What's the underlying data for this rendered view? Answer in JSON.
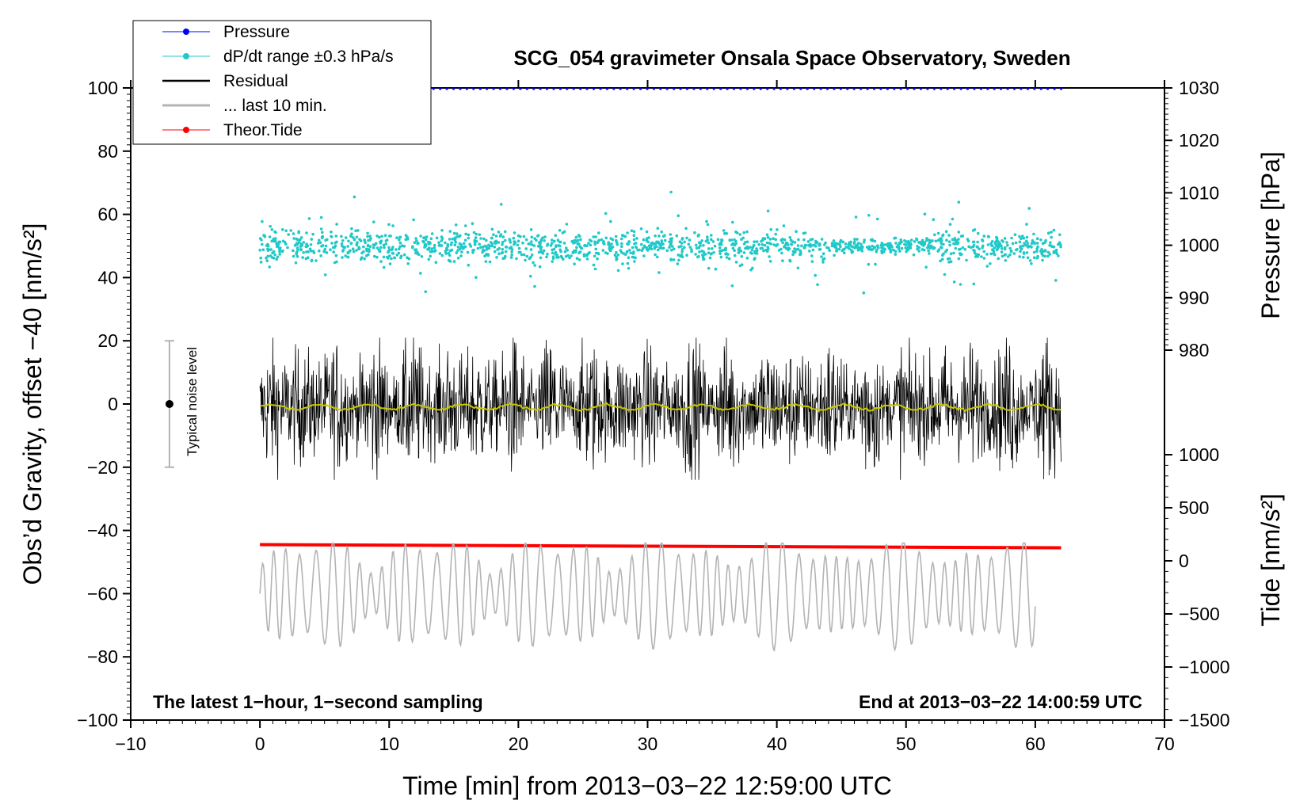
{
  "chart_data": {
    "type": "line",
    "title": "SCG_054 gravimeter Onsala Space Observatory, Sweden",
    "xlabel": "Time [min] from 2013−03−22 12:59:00 UTC",
    "ylabel_left": "Obs’d Gravity, offset −40 [nm/s²]",
    "ylabel_right_pressure": "Pressure [hPa]",
    "ylabel_right_tide": "Tide [nm/s²]",
    "xlim": [
      -10,
      70
    ],
    "ylim": [
      -100,
      100
    ],
    "x_ticks": [
      "−10",
      "0",
      "10",
      "20",
      "30",
      "40",
      "50",
      "60",
      "70"
    ],
    "y_ticks_left": [
      "100",
      "80",
      "60",
      "40",
      "20",
      "0",
      "−20",
      "−40",
      "−60",
      "−80",
      "−100"
    ],
    "pressure_ticks": [
      "1030",
      "1020",
      "1010",
      "1000",
      "990",
      "980"
    ],
    "pressure_range": [
      980,
      1030
    ],
    "tide_ticks": [
      "1000",
      "500",
      "0",
      "−500",
      "−1000",
      "−1500"
    ],
    "tide_range": [
      -1500,
      1000
    ],
    "legend": [
      {
        "label": "Pressure",
        "color": "#0000ff",
        "marker": "dot"
      },
      {
        "label": "dP/dt range ±0.3 hPa/s",
        "color": "#20c8c8",
        "marker": "dot"
      },
      {
        "label": "Residual",
        "color": "#000000",
        "marker": "none"
      },
      {
        "label": "... last 10 min.",
        "color": "#b4b4b4",
        "marker": "none"
      },
      {
        "label": "Theor.Tide",
        "color": "#ff0000",
        "marker": "dot"
      }
    ],
    "series": [
      {
        "name": "Pressure",
        "color": "#0000ff",
        "x_range": [
          0,
          62
        ],
        "value_hpa": 1030
      },
      {
        "name": "dP/dt",
        "color": "#20c8c8",
        "x_range": [
          0,
          62
        ],
        "center": 50,
        "spread": 8
      },
      {
        "name": "Residual",
        "color": "#000000",
        "x_range": [
          0,
          62
        ],
        "center": -1,
        "spread": 12
      },
      {
        "name": "Residual smoothed",
        "color": "#c8c800",
        "x_range": [
          0,
          62
        ],
        "center": -1
      },
      {
        "name": "Theor.Tide",
        "color": "#ff0000",
        "x": [
          0,
          62
        ],
        "y": [
          -44.5,
          -45.5
        ]
      },
      {
        "name": "... last 10 min.",
        "color": "#b4b4b4",
        "x_range": [
          0,
          60
        ],
        "center": -60,
        "spread": 14
      }
    ],
    "noise_level": {
      "label": "Typical noise level",
      "x": -7,
      "center": 0,
      "range": [
        -20,
        20
      ]
    },
    "note_left": "The latest 1−hour, 1−second sampling",
    "note_right": "End at 2013−03−22 14:00:59 UTC"
  }
}
